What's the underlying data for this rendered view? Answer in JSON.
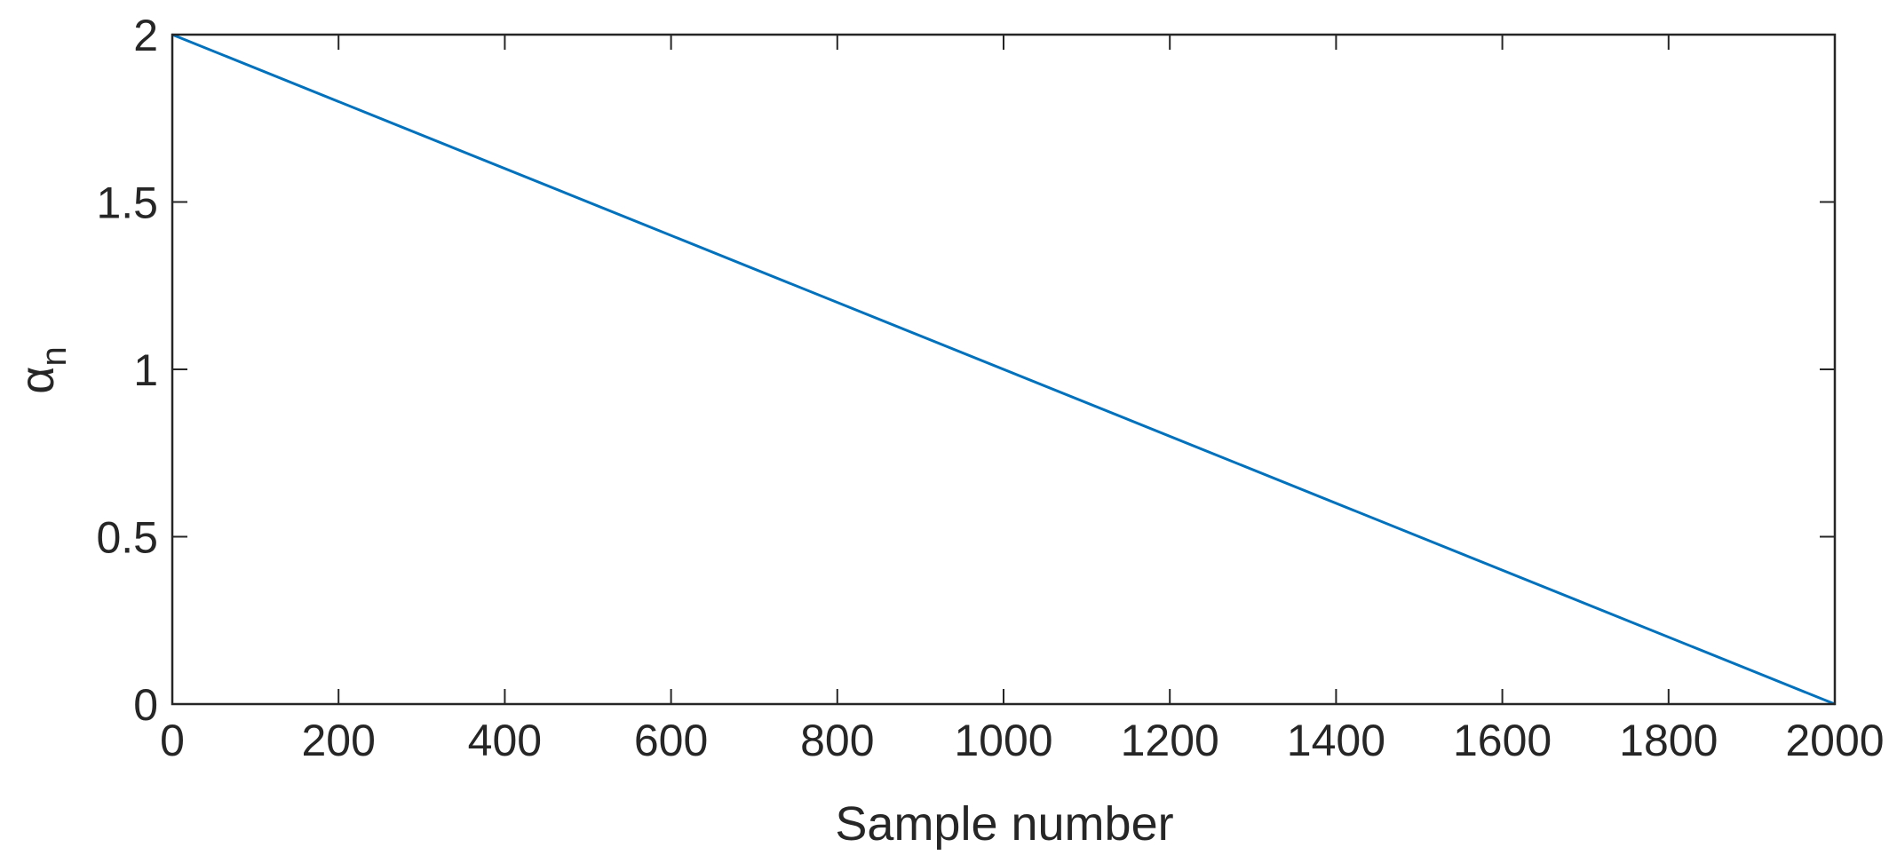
{
  "chart_data": {
    "type": "line",
    "title": "",
    "xlabel": "Sample number",
    "ylabel": {
      "symbol": "α",
      "subscript": "n"
    },
    "xlim": [
      0,
      2000
    ],
    "ylim": [
      0,
      2
    ],
    "xticks": [
      "0",
      "200",
      "400",
      "600",
      "800",
      "1000",
      "1200",
      "1400",
      "1600",
      "1800",
      "2000"
    ],
    "yticks": [
      "0",
      "0.5",
      "1",
      "1.5",
      "2"
    ],
    "grid": false,
    "box": true,
    "series": [
      {
        "x": [
          0,
          2000
        ],
        "y": [
          2,
          0
        ],
        "color": "#0072BD"
      }
    ]
  }
}
